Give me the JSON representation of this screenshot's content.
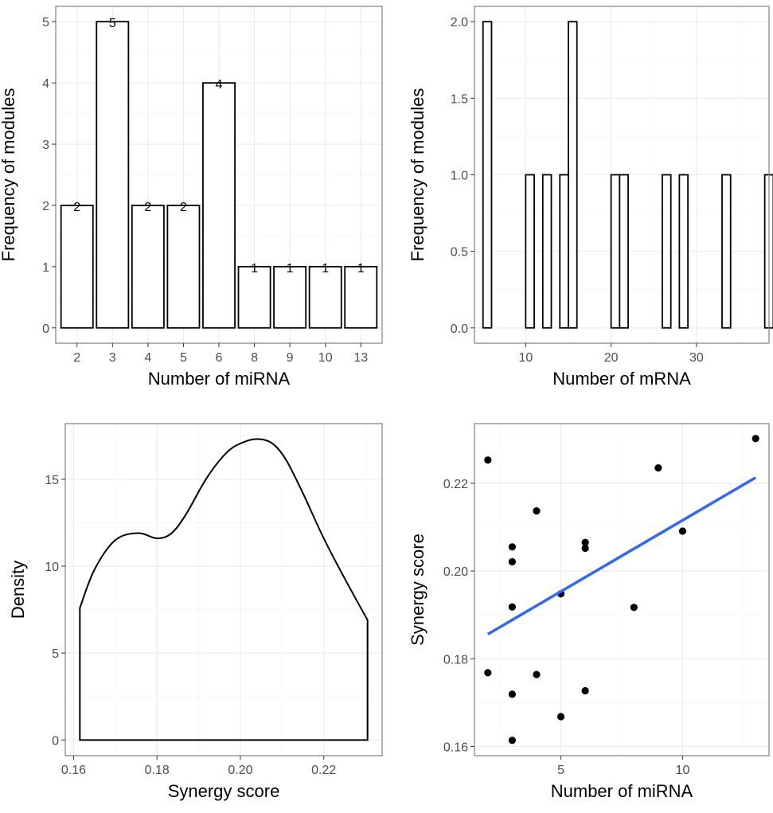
{
  "chart_data": [
    {
      "type": "bar",
      "xlabel": "Number of miRNA",
      "ylabel": "Frequency of modules",
      "categories": [
        "2",
        "3",
        "4",
        "5",
        "6",
        "8",
        "9",
        "10",
        "13"
      ],
      "values": [
        2,
        5,
        2,
        2,
        4,
        1,
        1,
        1,
        1
      ],
      "data_labels": [
        "2",
        "5",
        "2",
        "2",
        "4",
        "1",
        "1",
        "1",
        "1"
      ],
      "ylim": [
        -0.25,
        5.25
      ],
      "yticks": [
        0,
        1,
        2,
        3,
        4,
        5
      ],
      "ytick_labels": [
        "0",
        "1",
        "2",
        "3",
        "4",
        "5"
      ],
      "grid": true
    },
    {
      "type": "bar",
      "subtype": "histogram",
      "xlabel": "Number of mRNA",
      "ylabel": "Frequency of modules",
      "binwidth": 1,
      "bins_x": [
        5,
        6,
        7,
        8,
        9,
        10,
        11,
        12,
        13,
        14,
        15,
        16,
        17,
        18,
        19,
        20,
        21,
        22,
        23,
        24,
        25,
        26,
        27,
        28,
        29,
        30,
        31,
        32,
        33,
        34,
        35,
        36,
        37,
        38
      ],
      "counts": [
        2,
        0,
        0,
        0,
        0,
        1,
        0,
        1,
        0,
        1,
        2,
        0,
        0,
        0,
        0,
        1,
        1,
        0,
        0,
        0,
        0,
        1,
        0,
        1,
        0,
        0,
        0,
        0,
        1,
        0,
        0,
        0,
        0,
        1
      ],
      "xlim": [
        4,
        38.5
      ],
      "ylim": [
        -0.1,
        2.1
      ],
      "xticks": [
        10,
        20,
        30
      ],
      "xtick_labels": [
        "10",
        "20",
        "30"
      ],
      "yticks": [
        0,
        0.5,
        1,
        1.5,
        2
      ],
      "ytick_labels": [
        "0.0",
        "0.5",
        "1.0",
        "1.5",
        "2.0"
      ],
      "grid": true
    },
    {
      "type": "area",
      "subtype": "density",
      "xlabel": "Synergy score",
      "ylabel": "Density",
      "x": [
        0.1615,
        0.165,
        0.17,
        0.1755,
        0.18,
        0.1835,
        0.187,
        0.192,
        0.197,
        0.2015,
        0.205,
        0.208,
        0.211,
        0.215,
        0.22,
        0.225,
        0.2305
      ],
      "y": [
        7.6,
        9.8,
        11.5,
        11.9,
        11.6,
        11.9,
        13.0,
        15.1,
        16.6,
        17.2,
        17.3,
        17.0,
        16.1,
        14.2,
        11.6,
        9.3,
        6.9
      ],
      "xlim": [
        0.158,
        0.234
      ],
      "ylim": [
        -0.9,
        18.2
      ],
      "xticks": [
        0.16,
        0.18,
        0.2,
        0.22
      ],
      "xtick_labels": [
        "0.16",
        "0.18",
        "0.20",
        "0.22"
      ],
      "yticks": [
        0,
        5,
        10,
        15
      ],
      "ytick_labels": [
        "0",
        "5",
        "10",
        "15"
      ],
      "grid": true
    },
    {
      "type": "scatter",
      "xlabel": "Number of miRNA",
      "ylabel": "Synergy score",
      "points": [
        {
          "x": 2,
          "y": 0.2253
        },
        {
          "x": 2,
          "y": 0.1768
        },
        {
          "x": 3,
          "y": 0.2055
        },
        {
          "x": 3,
          "y": 0.2021
        },
        {
          "x": 3,
          "y": 0.1918
        },
        {
          "x": 3,
          "y": 0.1719
        },
        {
          "x": 3,
          "y": 0.1614
        },
        {
          "x": 4,
          "y": 0.2137
        },
        {
          "x": 4,
          "y": 0.1764
        },
        {
          "x": 5,
          "y": 0.1948
        },
        {
          "x": 5,
          "y": 0.1668
        },
        {
          "x": 6,
          "y": 0.2065
        },
        {
          "x": 6,
          "y": 0.2052
        },
        {
          "x": 6,
          "y": 0.1727
        },
        {
          "x": 8,
          "y": 0.1917
        },
        {
          "x": 9,
          "y": 0.2235
        },
        {
          "x": 10,
          "y": 0.2091
        },
        {
          "x": 13,
          "y": 0.2302
        }
      ],
      "trend_line": {
        "x": [
          2,
          13
        ],
        "y": [
          0.1856,
          0.2213
        ],
        "color": "#3366FF"
      },
      "xlim": [
        1.45,
        13.55
      ],
      "ylim": [
        0.1579,
        0.2336
      ],
      "xticks": [
        5,
        10
      ],
      "xtick_labels": [
        "5",
        "10"
      ],
      "yticks": [
        0.16,
        0.18,
        0.2,
        0.22
      ],
      "ytick_labels": [
        "0.16",
        "0.18",
        "0.20",
        "0.22"
      ],
      "grid": true
    }
  ]
}
